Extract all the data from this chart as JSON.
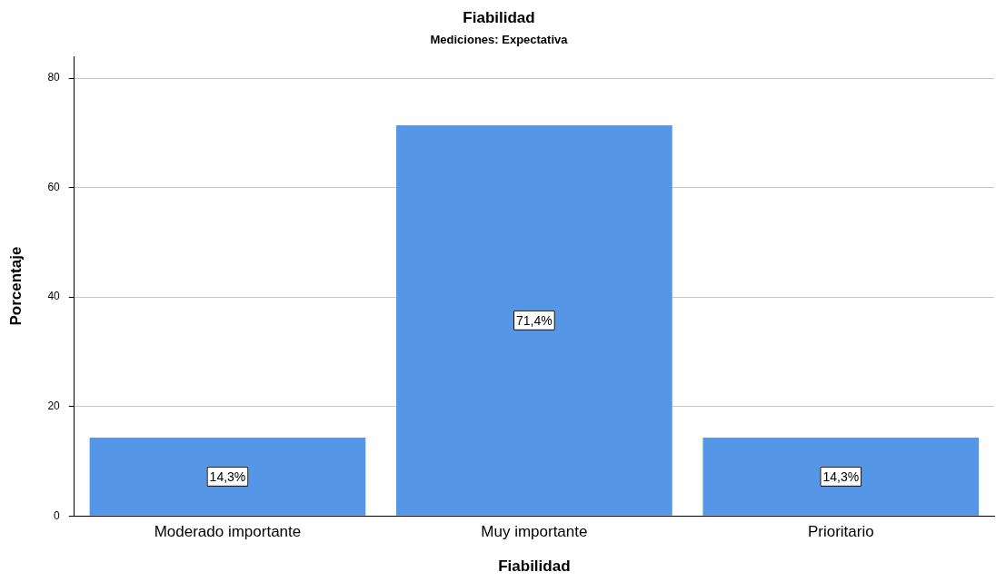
{
  "chart_data": {
    "type": "bar",
    "title": "Fiabilidad",
    "subtitle": "Mediciones: Expectativa",
    "xlabel": "Fiabilidad",
    "ylabel": "Porcentaje",
    "categories": [
      "Moderado importante",
      "Muy importante",
      "Prioritario"
    ],
    "values": [
      14.3,
      71.4,
      14.3
    ],
    "value_labels": [
      "14,3%",
      "71,4%",
      "14,3%"
    ],
    "color": "#5596e6",
    "ylim": [
      0,
      84
    ],
    "yticks": [
      0,
      20,
      40,
      60,
      80
    ],
    "grid": "y",
    "legend": false
  }
}
